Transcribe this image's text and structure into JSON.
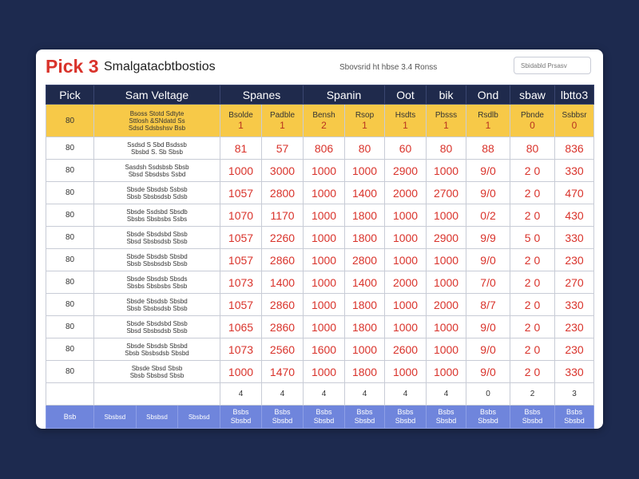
{
  "header": {
    "brand": "Pick 3",
    "title": "Smalgatacbtbostios",
    "subtitle": "Sbovsrid ht hbse 3.4 Ronss",
    "search_placeholder": "Sbidabld Prsasv"
  },
  "columns": [
    "Pick",
    "Sam Veltage",
    "Spanes",
    "Spanin",
    "Oot",
    "bik",
    "Ond",
    "sbaw",
    "lbtto3"
  ],
  "highlight_row": {
    "pick": "80",
    "sum_lines": [
      "Bsoss Stotd Sdtyte",
      "Sttlosh &SNdatd Ss",
      "Sdsd Sdsbshsv Bsb"
    ],
    "cells": [
      {
        "label": "Bsolde",
        "value": "1"
      },
      {
        "label": "Padble",
        "value": "1"
      },
      {
        "label": "Bensh",
        "value": "2"
      },
      {
        "label": "Rsop",
        "value": "1"
      },
      {
        "label": "Hsdts",
        "value": "1"
      },
      {
        "label": "Pbsss",
        "value": "1"
      },
      {
        "label": "Rsdlb",
        "value": "1"
      },
      {
        "label": "Pbnde",
        "value": "0"
      },
      {
        "label": "Ssbbsr",
        "value": "0"
      }
    ]
  },
  "rows": [
    {
      "pick": "80",
      "sum_lines": [
        "Ssdsd S Sbd Bsdssb",
        "Sbsbd S. Sb Sbsb"
      ],
      "values": [
        "81",
        "57",
        "806",
        "80",
        "60",
        "80",
        "88",
        "80",
        "836"
      ]
    },
    {
      "pick": "80",
      "sum_lines": [
        "Sasdsh Ssdsbsb Sbsb",
        "Sbsd Sbsdsbs Ssbd"
      ],
      "values": [
        "1000",
        "3000",
        "1000",
        "1000",
        "2900",
        "1000",
        "9/0",
        "2 0",
        "330"
      ]
    },
    {
      "pick": "80",
      "sum_lines": [
        "Sbsde Sbsdsb Ssbsb",
        "Sbsb Sbsbsdsb Sdsb"
      ],
      "values": [
        "1057",
        "2800",
        "1000",
        "1400",
        "2000",
        "2700",
        "9/0",
        "2 0",
        "470"
      ]
    },
    {
      "pick": "80",
      "sum_lines": [
        "Sbsde Ssdsbd Sbsdb",
        "Sbsbs Sbsbsbs Ssbs"
      ],
      "values": [
        "1070",
        "1170",
        "1000",
        "1800",
        "1000",
        "1000",
        "0/2",
        "2 0",
        "430"
      ]
    },
    {
      "pick": "80",
      "sum_lines": [
        "Sbsde Sbsdsbd Sbsb",
        "Sbsd Sbsbsdsb Sbsb"
      ],
      "values": [
        "1057",
        "2260",
        "1000",
        "1800",
        "1000",
        "2900",
        "9/9",
        "5 0",
        "330"
      ]
    },
    {
      "pick": "80",
      "sum_lines": [
        "Sbsde Sbsdsb Sbsbd",
        "Sbsb Sbsbsdsb Sbsb"
      ],
      "values": [
        "1057",
        "2860",
        "1000",
        "2800",
        "1000",
        "1000",
        "9/0",
        "2 0",
        "230"
      ]
    },
    {
      "pick": "80",
      "sum_lines": [
        "Sbsde Sbsdsb Sbsds",
        "Sbsbs Sbsbsbs Sbsb"
      ],
      "values": [
        "1073",
        "1400",
        "1000",
        "1400",
        "2000",
        "1000",
        "7/0",
        "2 0",
        "270"
      ]
    },
    {
      "pick": "80",
      "sum_lines": [
        "Sbsde Sbsdsb Sbsbd",
        "Sbsb Sbsbsdsb Sbsb"
      ],
      "values": [
        "1057",
        "2860",
        "1000",
        "1800",
        "1000",
        "2000",
        "8/7",
        "2 0",
        "330"
      ]
    },
    {
      "pick": "80",
      "sum_lines": [
        "Sbsde Sbsdsbd Sbsb",
        "Sbsd Sbsbsdsb Sbsb"
      ],
      "values": [
        "1065",
        "2860",
        "1000",
        "1800",
        "1000",
        "1000",
        "9/0",
        "2 0",
        "230"
      ]
    },
    {
      "pick": "80",
      "sum_lines": [
        "Sbsde Sbsdsb Sbsbd",
        "Sbsb Sbsbsdsb Sbsbd"
      ],
      "values": [
        "1073",
        "2560",
        "1600",
        "1000",
        "2600",
        "1000",
        "9/0",
        "2 0",
        "230"
      ]
    },
    {
      "pick": "80",
      "sum_lines": [
        "Sbsde Sbsd Sbsb",
        "Sbsb Sbsbsd Sbsb"
      ],
      "values": [
        "1000",
        "1470",
        "1000",
        "1800",
        "1000",
        "1000",
        "9/0",
        "2 0",
        "330"
      ]
    }
  ],
  "count_row": {
    "pick": "",
    "sum": "",
    "values": [
      "4",
      "4",
      "4",
      "4",
      "4",
      "4",
      "0",
      "2",
      "3"
    ]
  },
  "footer": {
    "label": "Bsb",
    "sum_cells": [
      "Sbsbsd",
      "Sbsbsd",
      "Sbsbsd"
    ],
    "cells": [
      {
        "top": "Bsbs",
        "bottom": "Sbsbd"
      },
      {
        "top": "Bsbs",
        "bottom": "Sbsbd"
      },
      {
        "top": "Bsbs",
        "bottom": "Sbsbd"
      },
      {
        "top": "Bsbs",
        "bottom": "Sbsbd"
      },
      {
        "top": "Bsbs",
        "bottom": "Sbsbd"
      },
      {
        "top": "Bsbs",
        "bottom": "Sbsbd"
      },
      {
        "top": "Bsbs",
        "bottom": "Sbsbd"
      },
      {
        "top": "Bsbs",
        "bottom": "Sbsbd"
      },
      {
        "top": "Bsbs",
        "bottom": "Sbsbd"
      }
    ]
  },
  "colors": {
    "page_bg": "#1d2a4f",
    "header_bg": "#1f2a4c",
    "highlight_bg": "#f7c948",
    "number_red": "#d9332b",
    "footer_bg": "#6f85dc"
  }
}
